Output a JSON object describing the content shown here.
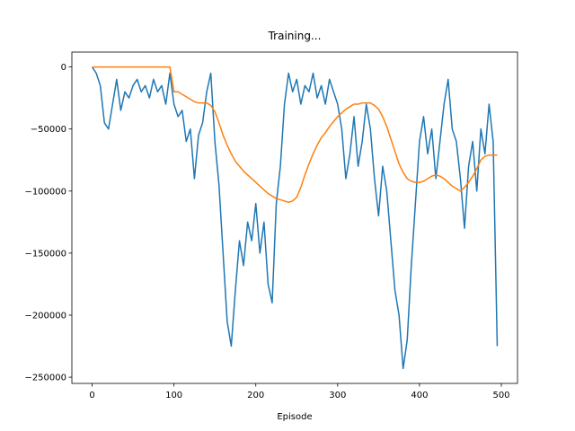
{
  "chart_data": {
    "type": "line",
    "title": "Training...",
    "x_label": "Episode",
    "x": [
      0,
      5,
      10,
      15,
      20,
      25,
      30,
      35,
      40,
      45,
      50,
      55,
      60,
      65,
      70,
      75,
      80,
      85,
      90,
      95,
      100,
      105,
      110,
      115,
      120,
      125,
      130,
      135,
      140,
      145,
      150,
      155,
      160,
      165,
      170,
      175,
      180,
      185,
      190,
      195,
      200,
      205,
      210,
      215,
      220,
      225,
      230,
      235,
      240,
      245,
      250,
      255,
      260,
      265,
      270,
      275,
      280,
      285,
      290,
      295,
      300,
      305,
      310,
      315,
      320,
      325,
      330,
      335,
      340,
      345,
      350,
      355,
      360,
      365,
      370,
      375,
      380,
      385,
      390,
      395,
      400,
      405,
      410,
      415,
      420,
      425,
      430,
      435,
      440,
      445,
      450,
      455,
      460,
      465,
      470,
      475,
      480,
      485,
      490,
      495
    ],
    "series": [
      {
        "color": "#1f77b4",
        "values": [
          0,
          -5000,
          -15000,
          -45000,
          -50000,
          -30000,
          -10000,
          -35000,
          -20000,
          -25000,
          -15000,
          -10000,
          -20000,
          -15000,
          -25000,
          -10000,
          -20000,
          -15000,
          -30000,
          -5000,
          -30000,
          -40000,
          -35000,
          -60000,
          -50000,
          -90000,
          -55000,
          -45000,
          -20000,
          -5000,
          -60000,
          -95000,
          -150000,
          -205000,
          -225000,
          -180000,
          -140000,
          -160000,
          -125000,
          -140000,
          -110000,
          -150000,
          -125000,
          -175000,
          -190000,
          -110000,
          -80000,
          -30000,
          -5000,
          -20000,
          -10000,
          -30000,
          -15000,
          -20000,
          -5000,
          -25000,
          -15000,
          -30000,
          -10000,
          -20000,
          -30000,
          -50000,
          -90000,
          -70000,
          -40000,
          -80000,
          -60000,
          -30000,
          -50000,
          -90000,
          -120000,
          -80000,
          -100000,
          -140000,
          -180000,
          -200000,
          -243000,
          -220000,
          -160000,
          -110000,
          -60000,
          -40000,
          -70000,
          -50000,
          -90000,
          -60000,
          -30000,
          -10000,
          -50000,
          -60000,
          -90000,
          -130000,
          -80000,
          -60000,
          -100000,
          -50000,
          -70000,
          -30000,
          -60000,
          -225000
        ]
      },
      {
        "color": "#ff7f0e",
        "values": [
          0,
          0,
          0,
          0,
          0,
          0,
          0,
          0,
          0,
          0,
          0,
          0,
          0,
          0,
          0,
          0,
          0,
          0,
          0,
          0,
          -20000,
          -20000,
          -22000,
          -24000,
          -26000,
          -28000,
          -29000,
          -29000,
          -29000,
          -31000,
          -36000,
          -45000,
          -55000,
          -63000,
          -70000,
          -76000,
          -80000,
          -84000,
          -87000,
          -90000,
          -93000,
          -96000,
          -99000,
          -102000,
          -104000,
          -106000,
          -107000,
          -108000,
          -109000,
          -108000,
          -105000,
          -97000,
          -87000,
          -78000,
          -70000,
          -63000,
          -57000,
          -53000,
          -48000,
          -44000,
          -40000,
          -37000,
          -34000,
          -32000,
          -30000,
          -30000,
          -29000,
          -29000,
          -29000,
          -31000,
          -34000,
          -40000,
          -48000,
          -58000,
          -68000,
          -78000,
          -85000,
          -90000,
          -92000,
          -93000,
          -93000,
          -92000,
          -90000,
          -88000,
          -87000,
          -88000,
          -90000,
          -93000,
          -96000,
          -98000,
          -100000,
          -97000,
          -93000,
          -88000,
          -82000,
          -75000,
          -72000,
          -71000,
          -71000,
          -71000
        ]
      }
    ],
    "xlim": [
      -24.75,
      519.75
    ],
    "ylim": [
      -255000,
      12000
    ],
    "xticks": [
      0,
      100,
      200,
      300,
      400,
      500
    ],
    "yticks": [
      {
        "value": -250000,
        "label": "−250000"
      },
      {
        "value": -200000,
        "label": "−200000"
      },
      {
        "value": -150000,
        "label": "−150000"
      },
      {
        "value": -100000,
        "label": "−100000"
      },
      {
        "value": -50000,
        "label": "−50000"
      },
      0
    ]
  }
}
